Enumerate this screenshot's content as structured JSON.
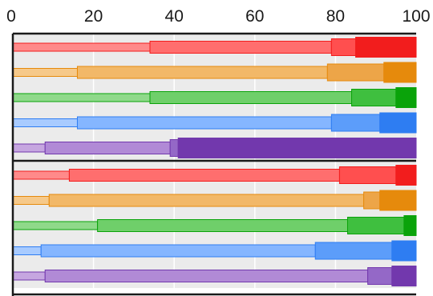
{
  "chart_data": {
    "type": "bar",
    "subtype": "stacked-progressive-bars",
    "title": "",
    "xlabel": "",
    "ylabel": "",
    "xlim": [
      0,
      100
    ],
    "x_ticks": [
      "0",
      "20",
      "40",
      "60",
      "80",
      "100"
    ],
    "grid": true,
    "legend": "none",
    "groups": [
      {
        "rows": [
          {
            "segments": [
              [
                0,
                34
              ],
              [
                34,
                79
              ],
              [
                79,
                85
              ],
              [
                85,
                100
              ]
            ],
            "colors": [
              "#ff8a8a",
              "#ff6e6e",
              "#ff4f4f",
              "#f21d1d"
            ]
          },
          {
            "segments": [
              [
                0,
                16
              ],
              [
                16,
                78
              ],
              [
                78,
                92
              ],
              [
                92,
                100
              ]
            ],
            "colors": [
              "#f6c98a",
              "#f2b868",
              "#eda548",
              "#e68a0c"
            ]
          },
          {
            "segments": [
              [
                0,
                34
              ],
              [
                34,
                84
              ],
              [
                84,
                95
              ],
              [
                95,
                100
              ]
            ],
            "colors": [
              "#8fd98a",
              "#6fcf6a",
              "#3fbf3f",
              "#0aa30a"
            ]
          },
          {
            "segments": [
              [
                0,
                16
              ],
              [
                16,
                79
              ],
              [
                79,
                91
              ],
              [
                91,
                100
              ]
            ],
            "colors": [
              "#a8cbff",
              "#85b6ff",
              "#5c9dfa",
              "#2e7df2"
            ]
          },
          {
            "segments": [
              [
                0,
                8
              ],
              [
                8,
                39
              ],
              [
                39,
                41
              ],
              [
                41,
                100
              ]
            ],
            "colors": [
              "#c6a6e0",
              "#b18ad6",
              "#9468c7",
              "#7238ad"
            ]
          }
        ]
      },
      {
        "rows": [
          {
            "segments": [
              [
                0,
                14
              ],
              [
                14,
                81
              ],
              [
                81,
                95
              ],
              [
                95,
                100
              ]
            ],
            "colors": [
              "#ff8a8a",
              "#ff6e6e",
              "#ff4f4f",
              "#f21d1d"
            ]
          },
          {
            "segments": [
              [
                0,
                9
              ],
              [
                9,
                87
              ],
              [
                87,
                91
              ],
              [
                91,
                100
              ]
            ],
            "colors": [
              "#f6c98a",
              "#f2b868",
              "#eda548",
              "#e68a0c"
            ]
          },
          {
            "segments": [
              [
                0,
                21
              ],
              [
                21,
                83
              ],
              [
                83,
                97
              ],
              [
                97,
                100
              ]
            ],
            "colors": [
              "#8fd98a",
              "#6fcf6a",
              "#3fbf3f",
              "#0aa30a"
            ]
          },
          {
            "segments": [
              [
                0,
                7
              ],
              [
                7,
                75
              ],
              [
                75,
                94
              ],
              [
                94,
                100
              ]
            ],
            "colors": [
              "#a8cbff",
              "#85b6ff",
              "#5c9dfa",
              "#2e7df2"
            ]
          },
          {
            "segments": [
              [
                0,
                8
              ],
              [
                8,
                88
              ],
              [
                88,
                94
              ],
              [
                94,
                100
              ]
            ],
            "colors": [
              "#c6a6e0",
              "#b18ad6",
              "#9468c7",
              "#7238ad"
            ]
          }
        ]
      }
    ]
  }
}
